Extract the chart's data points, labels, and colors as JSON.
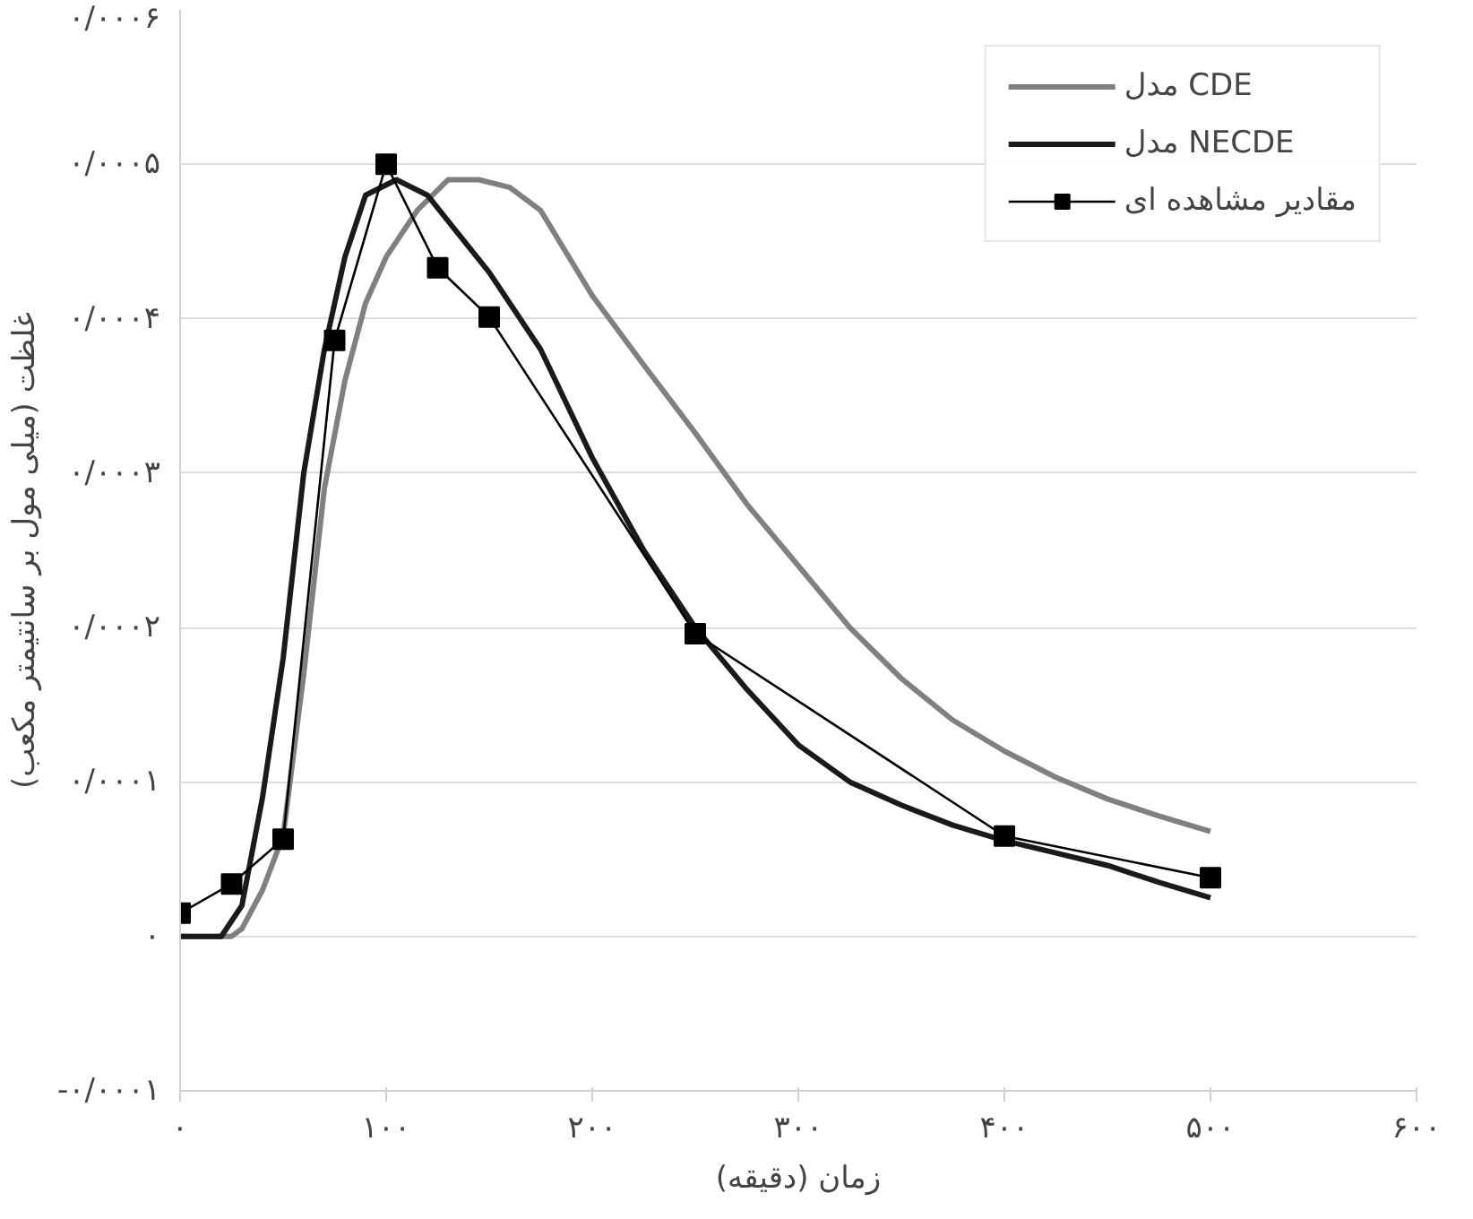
{
  "chart_data": {
    "type": "line",
    "xlabel": "زمان (دقیقه)",
    "ylabel": "غلظت (میلی مول بر سانتیمتر مکعب)",
    "xlim": [
      0,
      600
    ],
    "xticks": [
      {
        "value": 0,
        "label": "۰"
      },
      {
        "value": 100,
        "label": "۱۰۰"
      },
      {
        "value": 200,
        "label": "۲۰۰"
      },
      {
        "value": 300,
        "label": "۳۰۰"
      },
      {
        "value": 400,
        "label": "۴۰۰"
      },
      {
        "value": 500,
        "label": "۵۰۰"
      },
      {
        "value": 600,
        "label": "۶۰۰"
      }
    ],
    "ylim": [
      -0.0001,
      0.0006
    ],
    "yticks": [
      {
        "value": -0.0001,
        "label": "-۰/۰۰۰۱"
      },
      {
        "value": 0,
        "label": "۰"
      },
      {
        "value": 0.0001,
        "label": "۰/۰۰۰۱"
      },
      {
        "value": 0.0002,
        "label": "۰/۰۰۰۲"
      },
      {
        "value": 0.0003,
        "label": "۰/۰۰۰۳"
      },
      {
        "value": 0.0004,
        "label": "۰/۰۰۰۴"
      },
      {
        "value": 0.0005,
        "label": "۰/۰۰۰۵"
      },
      {
        "value": 0.0006,
        "label": "۰/۰۰۰۶"
      }
    ],
    "grid": "y",
    "legend": "top right",
    "series": [
      {
        "name": "مدل CDE",
        "color": "#808080",
        "marker": "none",
        "x": [
          0,
          25,
          30,
          40,
          50,
          60,
          70,
          80,
          90,
          100,
          115,
          130,
          145,
          160,
          175,
          200,
          225,
          250,
          275,
          300,
          325,
          350,
          375,
          400,
          425,
          450,
          475,
          500
        ],
        "values": [
          0,
          0,
          5e-06,
          3e-05,
          6.5e-05,
          0.00017,
          0.00029,
          0.00036,
          0.00041,
          0.00044,
          0.00047,
          0.00049,
          0.00049,
          0.000485,
          0.00047,
          0.000415,
          0.00037,
          0.000326,
          0.00028,
          0.00024,
          0.0002,
          0.000167,
          0.00014,
          0.00012,
          0.000103,
          8.9e-05,
          7.8e-05,
          6.8e-05
        ]
      },
      {
        "name": "مدل NECDE",
        "color": "#1a1a1a",
        "marker": "none",
        "x": [
          0,
          20,
          30,
          40,
          50,
          60,
          70,
          80,
          90,
          105,
          120,
          150,
          175,
          200,
          225,
          250,
          275,
          300,
          325,
          350,
          375,
          400,
          425,
          450,
          475,
          500
        ],
        "values": [
          0,
          0,
          2e-05,
          9e-05,
          0.00018,
          0.0003,
          0.00038,
          0.00044,
          0.00048,
          0.00049,
          0.00048,
          0.00043,
          0.00038,
          0.00031,
          0.00025,
          0.0002,
          0.00016,
          0.000124,
          0.0001,
          8.5e-05,
          7.2e-05,
          6.2e-05,
          5.4e-05,
          4.6e-05,
          3.5e-05,
          2.5e-05
        ]
      },
      {
        "name": "مقادیر مشاهده ای",
        "color": "#000000",
        "marker": "square",
        "x": [
          0,
          25,
          50,
          75,
          100,
          125,
          150,
          250,
          400,
          500
        ],
        "values": [
          1.5e-05,
          3.4e-05,
          6.3e-05,
          0.000386,
          0.0005,
          0.000433,
          0.000401,
          0.000196,
          6.5e-05,
          3.8e-05
        ]
      }
    ]
  }
}
